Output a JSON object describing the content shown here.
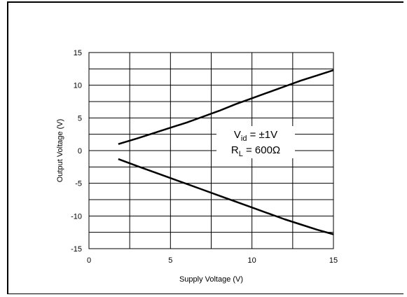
{
  "chart_data": {
    "type": "line",
    "xlabel": "Supply Voltage (V)",
    "ylabel": "Output Voltage (V)",
    "xlim": [
      0,
      15
    ],
    "ylim": [
      -15,
      15
    ],
    "x_ticks": [
      "0",
      "5",
      "10",
      "15"
    ],
    "y_ticks": [
      "15",
      "10",
      "5",
      "0",
      "-5",
      "-10",
      "-15"
    ],
    "grid": true,
    "annotation": {
      "line1_main": "V",
      "line1_sub": "id",
      "line1_rest": " = ±1V",
      "line2_main": "R",
      "line2_sub": "L",
      "line2_rest": " = 600Ω"
    },
    "series": [
      {
        "x": [
          1.8,
          3,
          4,
          5,
          6,
          7,
          8,
          9,
          10,
          11,
          12,
          13,
          14,
          15
        ],
        "y": [
          1.0,
          1.9,
          2.7,
          3.5,
          4.3,
          5.2,
          6.1,
          7.1,
          8.0,
          8.9,
          9.8,
          10.7,
          11.5,
          12.3
        ]
      },
      {
        "x": [
          1.8,
          3,
          4,
          5,
          6,
          7,
          8,
          9,
          10,
          11,
          12,
          13,
          14,
          15
        ],
        "y": [
          -1.3,
          -2.4,
          -3.3,
          -4.2,
          -5.1,
          -6.0,
          -6.9,
          -7.8,
          -8.7,
          -9.6,
          -10.5,
          -11.3,
          -12.1,
          -12.8
        ]
      }
    ]
  }
}
